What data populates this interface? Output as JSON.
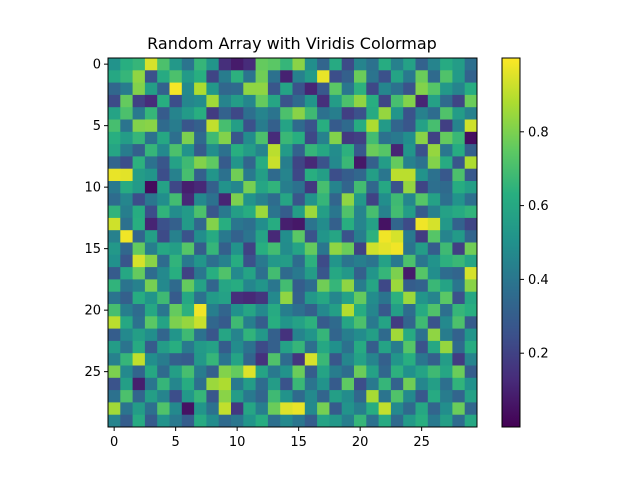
{
  "chart_data": {
    "type": "heatmap",
    "title": "Random Array with Viridis Colormap",
    "colormap": "viridis",
    "rows": 30,
    "cols": 30,
    "vmin": 0.0,
    "vmax": 1.0,
    "x_ticks": [
      0,
      5,
      10,
      15,
      20,
      25
    ],
    "y_ticks": [
      0,
      5,
      10,
      15,
      20,
      25
    ],
    "colorbar_ticks": [
      0.2,
      0.4,
      0.6,
      0.8
    ],
    "values": [
      [
        0.51,
        0.63,
        0.66,
        0.94,
        0.71,
        0.53,
        0.39,
        0.66,
        0.52,
        0.14,
        0.08,
        0.13,
        0.76,
        0.74,
        0.66,
        0.82,
        0.49,
        0.33,
        0.61,
        0.23,
        0.45,
        0.38,
        0.62,
        0.44,
        0.57,
        0.32,
        0.45,
        0.61,
        0.55,
        0.37
      ],
      [
        0.6,
        0.66,
        0.83,
        0.25,
        0.61,
        0.71,
        0.54,
        0.63,
        0.21,
        0.42,
        0.64,
        0.39,
        0.78,
        0.38,
        0.1,
        0.44,
        0.54,
        0.97,
        0.24,
        0.31,
        0.77,
        0.39,
        0.25,
        0.58,
        0.41,
        0.77,
        0.35,
        0.72,
        0.54,
        0.32
      ],
      [
        0.34,
        0.42,
        0.81,
        0.56,
        0.32,
        0.99,
        0.47,
        0.88,
        0.53,
        0.34,
        0.35,
        0.83,
        0.83,
        0.27,
        0.58,
        0.26,
        0.11,
        0.28,
        0.74,
        0.4,
        0.64,
        0.22,
        0.46,
        0.38,
        0.26,
        0.81,
        0.73,
        0.53,
        0.45,
        0.62
      ],
      [
        0.23,
        0.76,
        0.2,
        0.13,
        0.63,
        0.24,
        0.46,
        0.48,
        0.86,
        0.45,
        0.55,
        0.46,
        0.76,
        0.59,
        0.26,
        0.35,
        0.52,
        0.14,
        0.55,
        0.71,
        0.83,
        0.63,
        0.21,
        0.7,
        0.81,
        0.11,
        0.57,
        0.35,
        0.21,
        0.77
      ],
      [
        0.58,
        0.71,
        0.41,
        0.66,
        0.29,
        0.45,
        0.54,
        0.63,
        0.18,
        0.32,
        0.22,
        0.37,
        0.45,
        0.39,
        0.71,
        0.82,
        0.68,
        0.38,
        0.43,
        0.19,
        0.25,
        0.61,
        0.84,
        0.52,
        0.26,
        0.44,
        0.36,
        0.72,
        0.55,
        0.44
      ],
      [
        0.7,
        0.39,
        0.81,
        0.82,
        0.35,
        0.42,
        0.27,
        0.31,
        0.91,
        0.7,
        0.56,
        0.25,
        0.42,
        0.31,
        0.58,
        0.35,
        0.26,
        0.63,
        0.29,
        0.35,
        0.62,
        0.88,
        0.54,
        0.33,
        0.27,
        0.57,
        0.7,
        0.19,
        0.45,
        0.93
      ],
      [
        0.63,
        0.55,
        0.66,
        0.38,
        0.6,
        0.37,
        0.8,
        0.35,
        0.68,
        0.81,
        0.27,
        0.48,
        0.71,
        0.13,
        0.67,
        0.63,
        0.22,
        0.44,
        0.81,
        0.17,
        0.19,
        0.69,
        0.38,
        0.41,
        0.49,
        0.82,
        0.2,
        0.76,
        0.67,
        0.04
      ],
      [
        0.59,
        0.42,
        0.31,
        0.66,
        0.47,
        0.71,
        0.51,
        0.29,
        0.49,
        0.38,
        0.63,
        0.55,
        0.45,
        0.9,
        0.54,
        0.32,
        0.66,
        0.6,
        0.48,
        0.64,
        0.28,
        0.77,
        0.73,
        0.11,
        0.52,
        0.25,
        0.84,
        0.4,
        0.62,
        0.31
      ],
      [
        0.33,
        0.24,
        0.64,
        0.38,
        0.27,
        0.57,
        0.68,
        0.81,
        0.75,
        0.29,
        0.52,
        0.33,
        0.62,
        0.92,
        0.43,
        0.21,
        0.12,
        0.26,
        0.47,
        0.67,
        0.07,
        0.31,
        0.55,
        0.76,
        0.44,
        0.38,
        0.81,
        0.61,
        0.27,
        0.88
      ],
      [
        0.97,
        0.96,
        0.55,
        0.52,
        0.24,
        0.44,
        0.7,
        0.31,
        0.52,
        0.38,
        0.78,
        0.41,
        0.56,
        0.35,
        0.45,
        0.22,
        0.63,
        0.56,
        0.24,
        0.3,
        0.34,
        0.56,
        0.4,
        0.9,
        0.9,
        0.51,
        0.38,
        0.28,
        0.71,
        0.28
      ],
      [
        0.41,
        0.61,
        0.54,
        0.03,
        0.57,
        0.22,
        0.09,
        0.12,
        0.31,
        0.51,
        0.46,
        0.79,
        0.59,
        0.65,
        0.43,
        0.38,
        0.17,
        0.7,
        0.45,
        0.33,
        0.69,
        0.34,
        0.6,
        0.26,
        0.84,
        0.21,
        0.37,
        0.35,
        0.62,
        0.56
      ],
      [
        0.36,
        0.46,
        0.24,
        0.4,
        0.49,
        0.69,
        0.12,
        0.47,
        0.38,
        0.11,
        0.8,
        0.51,
        0.44,
        0.36,
        0.59,
        0.27,
        0.51,
        0.66,
        0.33,
        0.83,
        0.53,
        0.2,
        0.49,
        0.68,
        0.46,
        0.73,
        0.57,
        0.37,
        0.51,
        0.37
      ],
      [
        0.65,
        0.43,
        0.62,
        0.24,
        0.65,
        0.48,
        0.54,
        0.71,
        0.27,
        0.41,
        0.56,
        0.62,
        0.85,
        0.39,
        0.3,
        0.56,
        0.85,
        0.56,
        0.4,
        0.72,
        0.45,
        0.7,
        0.44,
        0.69,
        0.55,
        0.29,
        0.44,
        0.57,
        0.61,
        0.65
      ],
      [
        0.93,
        0.38,
        0.63,
        0.11,
        0.25,
        0.31,
        0.54,
        0.34,
        0.81,
        0.63,
        0.4,
        0.37,
        0.49,
        0.62,
        0.09,
        0.07,
        0.39,
        0.48,
        0.31,
        0.63,
        0.45,
        0.57,
        0.05,
        0.33,
        0.23,
        0.98,
        0.94,
        0.53,
        0.32,
        0.21
      ],
      [
        0.44,
        0.98,
        0.33,
        0.56,
        0.23,
        0.44,
        0.26,
        0.49,
        0.61,
        0.41,
        0.32,
        0.39,
        0.58,
        0.12,
        0.49,
        0.74,
        0.26,
        0.52,
        0.59,
        0.26,
        0.43,
        0.64,
        0.98,
        0.94,
        0.41,
        0.18,
        0.73,
        0.45,
        0.54,
        0.33
      ],
      [
        0.53,
        0.34,
        0.76,
        0.43,
        0.6,
        0.56,
        0.73,
        0.3,
        0.66,
        0.31,
        0.51,
        0.2,
        0.63,
        0.69,
        0.48,
        0.58,
        0.76,
        0.4,
        0.83,
        0.77,
        0.2,
        0.93,
        0.96,
        0.98,
        0.39,
        0.55,
        0.3,
        0.68,
        0.19,
        0.78
      ],
      [
        0.5,
        0.27,
        0.94,
        0.82,
        0.36,
        0.65,
        0.41,
        0.52,
        0.37,
        0.44,
        0.62,
        0.25,
        0.41,
        0.53,
        0.55,
        0.36,
        0.64,
        0.23,
        0.52,
        0.39,
        0.43,
        0.39,
        0.57,
        0.41,
        0.71,
        0.4,
        0.51,
        0.64,
        0.67,
        0.59
      ],
      [
        0.29,
        0.6,
        0.76,
        0.36,
        0.47,
        0.63,
        0.2,
        0.4,
        0.63,
        0.72,
        0.47,
        0.58,
        0.37,
        0.69,
        0.35,
        0.41,
        0.55,
        0.27,
        0.6,
        0.53,
        0.31,
        0.52,
        0.66,
        0.8,
        0.08,
        0.73,
        0.49,
        0.36,
        0.33,
        0.94
      ],
      [
        0.65,
        0.39,
        0.44,
        0.79,
        0.47,
        0.35,
        0.76,
        0.57,
        0.33,
        0.59,
        0.62,
        0.46,
        0.52,
        0.4,
        0.69,
        0.3,
        0.36,
        0.78,
        0.66,
        0.83,
        0.42,
        0.59,
        0.22,
        0.85,
        0.3,
        0.32,
        0.67,
        0.58,
        0.4,
        0.82
      ],
      [
        0.39,
        0.31,
        0.62,
        0.52,
        0.68,
        0.29,
        0.6,
        0.38,
        0.54,
        0.57,
        0.14,
        0.12,
        0.16,
        0.47,
        0.83,
        0.31,
        0.53,
        0.6,
        0.46,
        0.57,
        0.76,
        0.48,
        0.39,
        0.64,
        0.85,
        0.52,
        0.45,
        0.74,
        0.25,
        0.6
      ],
      [
        0.7,
        0.43,
        0.36,
        0.6,
        0.4,
        0.76,
        0.64,
        0.98,
        0.43,
        0.33,
        0.5,
        0.59,
        0.47,
        0.61,
        0.43,
        0.37,
        0.31,
        0.47,
        0.56,
        0.89,
        0.62,
        0.46,
        0.28,
        0.56,
        0.36,
        0.61,
        0.72,
        0.37,
        0.66,
        0.63
      ],
      [
        0.9,
        0.6,
        0.38,
        0.74,
        0.58,
        0.8,
        0.84,
        0.92,
        0.34,
        0.29,
        0.68,
        0.43,
        0.3,
        0.63,
        0.52,
        0.57,
        0.64,
        0.29,
        0.35,
        0.59,
        0.71,
        0.41,
        0.58,
        0.18,
        0.33,
        0.68,
        0.26,
        0.47,
        0.71,
        0.29
      ],
      [
        0.3,
        0.47,
        0.56,
        0.49,
        0.33,
        0.52,
        0.68,
        0.38,
        0.27,
        0.59,
        0.45,
        0.65,
        0.53,
        0.31,
        0.15,
        0.45,
        0.52,
        0.66,
        0.33,
        0.43,
        0.48,
        0.56,
        0.35,
        0.86,
        0.61,
        0.38,
        0.83,
        0.42,
        0.32,
        0.52
      ],
      [
        0.55,
        0.39,
        0.61,
        0.29,
        0.55,
        0.63,
        0.41,
        0.54,
        0.57,
        0.3,
        0.48,
        0.38,
        0.23,
        0.31,
        0.57,
        0.66,
        0.37,
        0.6,
        0.5,
        0.38,
        0.61,
        0.3,
        0.58,
        0.42,
        0.73,
        0.26,
        0.6,
        0.84,
        0.35,
        0.62
      ],
      [
        0.44,
        0.66,
        0.91,
        0.49,
        0.42,
        0.31,
        0.29,
        0.53,
        0.66,
        0.39,
        0.58,
        0.33,
        0.15,
        0.72,
        0.36,
        0.16,
        0.94,
        0.67,
        0.27,
        0.46,
        0.57,
        0.45,
        0.31,
        0.52,
        0.63,
        0.4,
        0.31,
        0.55,
        0.18,
        0.45
      ],
      [
        0.8,
        0.47,
        0.33,
        0.6,
        0.35,
        0.56,
        0.7,
        0.42,
        0.31,
        0.81,
        0.76,
        0.95,
        0.58,
        0.41,
        0.51,
        0.77,
        0.3,
        0.58,
        0.42,
        0.36,
        0.77,
        0.57,
        0.34,
        0.64,
        0.5,
        0.58,
        0.68,
        0.59,
        0.77,
        0.3
      ],
      [
        0.26,
        0.56,
        0.09,
        0.4,
        0.66,
        0.46,
        0.62,
        0.37,
        0.85,
        0.88,
        0.41,
        0.55,
        0.36,
        0.55,
        0.26,
        0.67,
        0.39,
        0.51,
        0.29,
        0.75,
        0.24,
        0.41,
        0.66,
        0.32,
        0.78,
        0.46,
        0.56,
        0.37,
        0.65,
        0.5
      ],
      [
        0.38,
        0.71,
        0.33,
        0.56,
        0.45,
        0.24,
        0.53,
        0.66,
        0.27,
        0.82,
        0.55,
        0.41,
        0.33,
        0.68,
        0.51,
        0.35,
        0.47,
        0.33,
        0.56,
        0.48,
        0.34,
        0.87,
        0.39,
        0.72,
        0.47,
        0.28,
        0.61,
        0.42,
        0.33,
        0.57
      ],
      [
        0.86,
        0.39,
        0.55,
        0.37,
        0.72,
        0.47,
        0.05,
        0.52,
        0.38,
        0.91,
        0.17,
        0.59,
        0.43,
        0.77,
        0.95,
        0.97,
        0.47,
        0.79,
        0.29,
        0.51,
        0.43,
        0.62,
        0.91,
        0.47,
        0.35,
        0.6,
        0.33,
        0.49,
        0.77,
        0.34
      ],
      [
        0.45,
        0.3,
        0.61,
        0.29,
        0.51,
        0.41,
        0.3,
        0.61,
        0.48,
        0.35,
        0.4,
        0.52,
        0.62,
        0.37,
        0.47,
        0.4,
        0.3,
        0.58,
        0.53,
        0.43,
        0.66,
        0.38,
        0.61,
        0.35,
        0.54,
        0.63,
        0.41,
        0.56,
        0.36,
        0.6
      ]
    ]
  }
}
